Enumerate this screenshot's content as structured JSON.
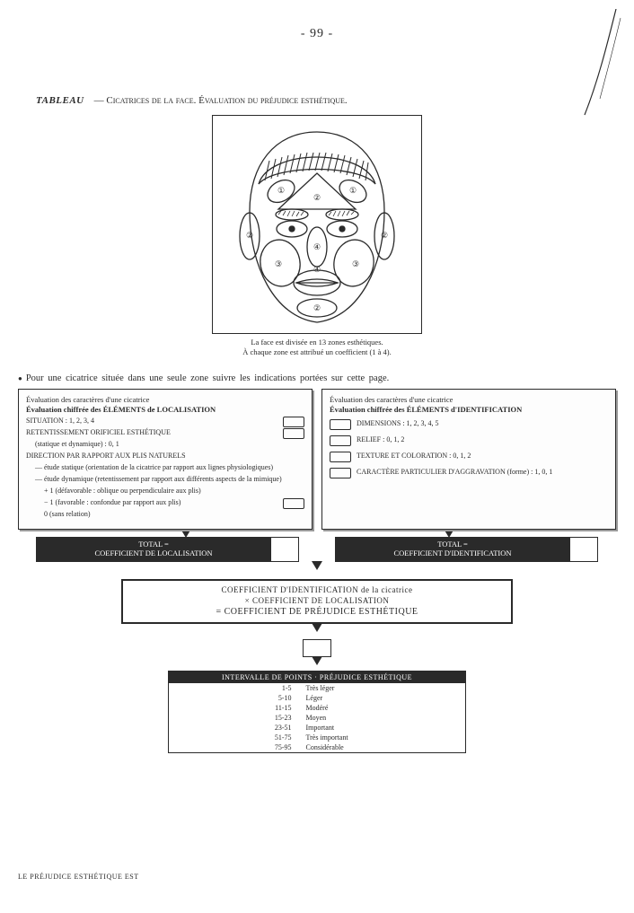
{
  "page": {
    "number": "- 99 -"
  },
  "title": {
    "label": "TABLEAU",
    "rest": "— Cicatrices de la face. Évaluation du préjudice esthétique."
  },
  "face": {
    "caption1": "La face est divisée en 13 zones esthétiques.",
    "caption2": "À chaque zone est attribué un coefficient (1 à 4).",
    "zone_labels": [
      "①",
      "②",
      "③",
      "④"
    ]
  },
  "instruction": "Pour une cicatrice située dans une seule zone suivre les indications portées sur cette page.",
  "left_panel": {
    "hdr1": "Évaluation des caractères d'une cicatrice",
    "hdr2": "Évaluation chiffrée des ÉLÉMENTS de LOCALISATION",
    "situation": "SITUATION : 1, 2, 3, 4",
    "retent": "RETENTISSEMENT ORIFICIEL ESTHÉTIQUE",
    "retent_sub": "(statique et dynamique) : 0, 1",
    "direction": "DIRECTION PAR RAPPORT AUX PLIS NATURELS",
    "dir_a": "— étude statique (orientation de la cicatrice par rapport aux lignes physiologiques)",
    "dir_b": "— étude dynamique (retentissement par rapport aux différents aspects de la mimique)",
    "dir_b1": "+ 1 (défavorable : oblique ou perpendiculaire aux plis)",
    "dir_b2": "− 1 (favorable : confondue par rapport aux plis)",
    "dir_b3": "0 (sans relation)"
  },
  "right_panel": {
    "hdr1": "Évaluation des caractères d'une cicatrice",
    "hdr2": "Évaluation chiffrée des ÉLÉMENTS d'IDENTIFICATION",
    "r1": "DIMENSIONS : 1, 2, 3, 4, 5",
    "r2": "RELIEF : 0, 1, 2",
    "r3": "TEXTURE ET COLORATION : 0, 1, 2",
    "r4": "CARACTÈRE PARTICULIER D'AGGRAVATION (forme) : 1, 0, 1"
  },
  "totals": {
    "left_small": "TOTAL =",
    "left": "COEFFICIENT DE LOCALISATION",
    "right_small": "TOTAL =",
    "right": "COEFFICIENT D'IDENTIFICATION"
  },
  "coef": {
    "l1": "COEFFICIENT D'IDENTIFICATION de la cicatrice",
    "l2": "× COEFFICIENT DE LOCALISATION",
    "l3": "= COEFFICIENT DE PRÉJUDICE ESTHÉTIQUE"
  },
  "interval": {
    "header": "INTERVALLE DE POINTS · PRÉJUDICE ESTHÉTIQUE",
    "rows": [
      {
        "pts": "1-5",
        "label": "Très léger"
      },
      {
        "pts": "5-10",
        "label": "Léger"
      },
      {
        "pts": "11-15",
        "label": "Modéré"
      },
      {
        "pts": "15-23",
        "label": "Moyen"
      },
      {
        "pts": "23-51",
        "label": "Important"
      },
      {
        "pts": "51-75",
        "label": "Très important"
      },
      {
        "pts": "75-95",
        "label": "Considérable"
      }
    ]
  },
  "side_label": "LE PRÉJUDICE ESTHÉTIQUE EST",
  "colors": {
    "ink": "#2a2a2a",
    "paper": "#ffffff",
    "shadow": "#999999"
  }
}
